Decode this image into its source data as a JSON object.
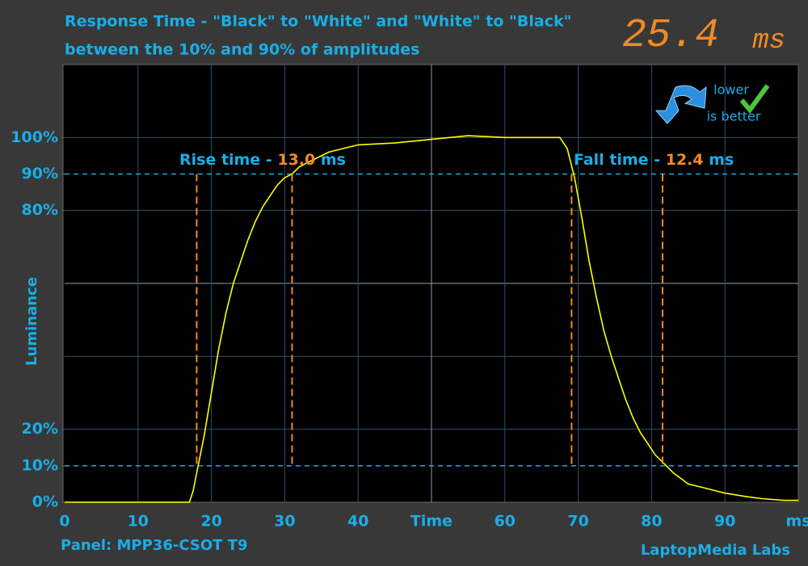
{
  "chart_data": {
    "type": "line",
    "title": "Response Time - \"Black\" to \"White\" and \"White\" to \"Black\"",
    "subtitle": "between the 10% and 90% of amplitudes",
    "headline": {
      "value": 25.4,
      "unit": "ms"
    },
    "badge": {
      "line1": "lower",
      "line2": "is better"
    },
    "ylabel": "Luminance",
    "panel": "Panel: MPP36-CSOT T9",
    "credit": "LaptopMedia Labs",
    "xlim": [
      0,
      100
    ],
    "ylim": [
      0,
      120
    ],
    "xticks": [
      0,
      10,
      20,
      30,
      40,
      {
        "value": 50,
        "label": "Time"
      },
      60,
      70,
      80,
      90,
      {
        "value": 100,
        "label": "ms"
      }
    ],
    "yticks": [
      {
        "value": 0,
        "label": "0%"
      },
      {
        "value": 10,
        "label": "10%"
      },
      {
        "value": 20,
        "label": "20%"
      },
      {
        "value": 80,
        "label": "80%"
      },
      {
        "value": 90,
        "label": "90%"
      },
      {
        "value": 100,
        "label": "100%"
      }
    ],
    "grid": true,
    "color": "#ffff00",
    "reference_levels": [
      10,
      90
    ],
    "rise": {
      "label": "Rise time -",
      "value": 13.0,
      "value_label": "13.0",
      "unit": "ms",
      "start": 18.0,
      "end": 31.0
    },
    "fall": {
      "label": "Fall time -",
      "value": 12.4,
      "unit": "ms",
      "start": 69.1,
      "end": 81.5
    },
    "x": [
      0,
      2,
      4,
      6,
      8,
      10,
      12,
      14,
      16,
      17,
      17.5,
      18,
      19,
      20,
      21,
      22,
      23,
      24,
      25,
      26,
      27,
      28,
      29,
      30,
      31,
      32,
      33,
      34,
      35,
      36,
      38,
      40,
      45,
      50,
      55,
      60,
      65,
      67.5,
      68.5,
      69.5,
      70.5,
      71.5,
      72.5,
      73.5,
      74.5,
      75.5,
      76.5,
      77.5,
      78.5,
      79.5,
      80.5,
      81.5,
      82,
      83,
      85,
      87,
      90,
      93,
      95,
      98,
      100
    ],
    "values": [
      0,
      0,
      0,
      0,
      0,
      0,
      0,
      0,
      0,
      0,
      3,
      8,
      18,
      30,
      42,
      52,
      60,
      66,
      72,
      77,
      81,
      84,
      87,
      89,
      90,
      92,
      93,
      94,
      95,
      96,
      97,
      98,
      98.5,
      99.5,
      100.5,
      100,
      100,
      100,
      97,
      89,
      78,
      66,
      56,
      47,
      40,
      34,
      28,
      23,
      19,
      16,
      13,
      11,
      10,
      8,
      5,
      4,
      2.5,
      1.5,
      1,
      0.5,
      0.5
    ]
  }
}
